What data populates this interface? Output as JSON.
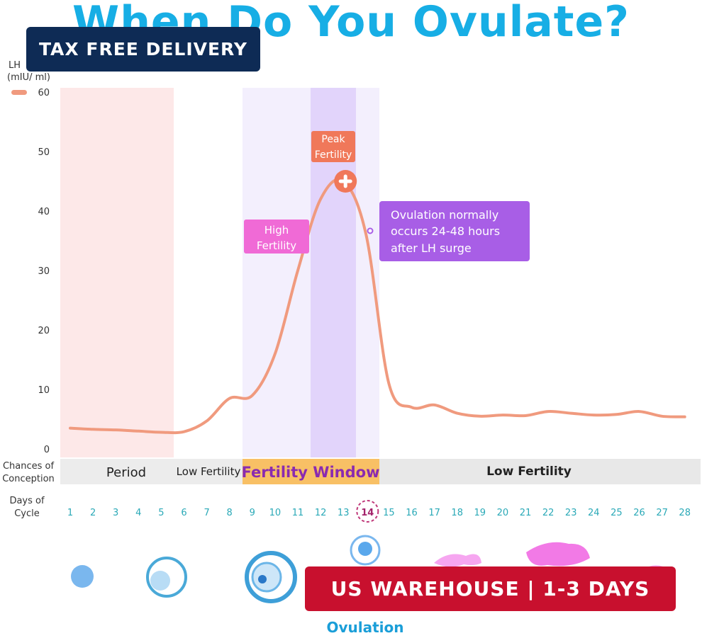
{
  "title": "When Do You Ovulate?",
  "badges": {
    "top": "TAX FREE DELIVERY",
    "bottom": "US WAREHOUSE | 1-3 DAYS"
  },
  "colors": {
    "curve": "#f09a7e",
    "title": "#17aee5",
    "period": "#fde8e8",
    "window": "#f3effd",
    "peak_band": "#e2d4fb",
    "fertility_window_bar": "#f8c065",
    "low_bar": "#e8e8e8",
    "peak_badge": "#f0785a",
    "high_badge": "#f06ad6",
    "ovulation_note": "#a85ee6",
    "teal": "#2aa9b7"
  },
  "chart_data": {
    "type": "line",
    "ylabel": "LH\n(mIU/ ml)",
    "ylim": [
      0,
      60
    ],
    "yticks": [
      0,
      10,
      20,
      30,
      40,
      50,
      60
    ],
    "x_label": "Days of Cycle",
    "days": [
      1,
      2,
      3,
      4,
      5,
      6,
      7,
      8,
      9,
      10,
      11,
      12,
      13,
      14,
      15,
      16,
      17,
      18,
      19,
      20,
      21,
      22,
      23,
      24,
      25,
      26,
      27,
      28
    ],
    "highlight_day": 14,
    "series": [
      {
        "values": [
          3.5,
          3.3,
          3.2,
          3.0,
          2.8,
          2.9,
          4.7,
          8.5,
          9.0,
          16,
          30,
          42,
          45,
          36,
          11,
          7,
          7.4,
          6,
          5.5,
          5.7,
          5.6,
          6.3,
          6.0,
          5.7,
          5.8,
          6.3,
          5.5,
          5.4
        ]
      }
    ],
    "peak": {
      "day": 13,
      "value": 45
    },
    "annotations": {
      "peak": "Peak Fertility",
      "high": "High Fertility",
      "ovulation_note": "Ovulation normally occurs 24-48 hours after LH surge"
    },
    "conception_label": "Chances of Conception",
    "conception_segments": [
      {
        "label": "Period",
        "from": 1,
        "to": 5
      },
      {
        "label": "Low Fertility",
        "from": 6,
        "to": 8
      },
      {
        "label": "Fertility Window",
        "from": 9,
        "to": 14
      },
      {
        "label": "Low Fertility",
        "from": 15,
        "to": 28
      }
    ],
    "bottom_label": "Ovulation"
  }
}
